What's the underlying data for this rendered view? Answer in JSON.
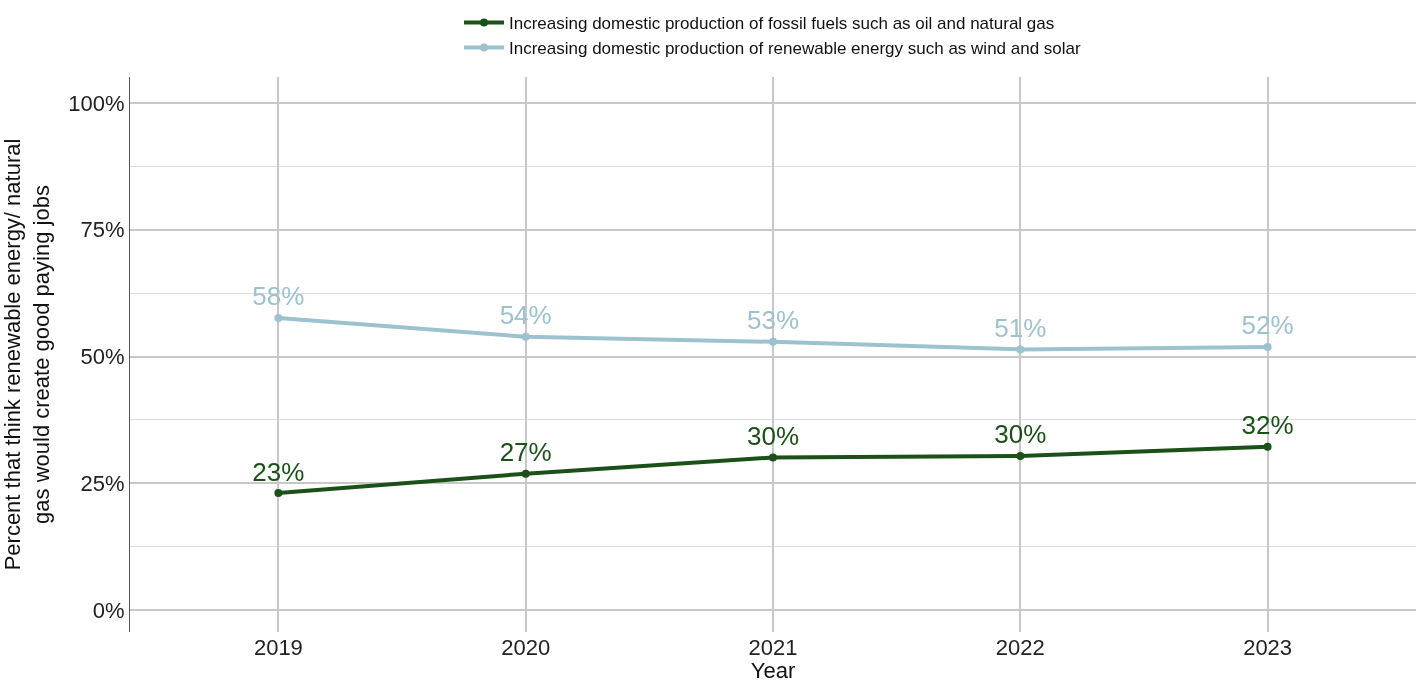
{
  "chart_data": {
    "type": "line",
    "xlabel": "Year",
    "ylabel": "Percent that think renewable energy/ natural\ngas would create good paying jobs",
    "x": [
      2019,
      2020,
      2021,
      2022,
      2023
    ],
    "xlim": [
      2018.4,
      2023.6
    ],
    "xticks": [
      2019,
      2020,
      2021,
      2022,
      2023
    ],
    "ylim": [
      -4.3,
      105.1
    ],
    "yticks": [
      {
        "value": 0,
        "label": "0%"
      },
      {
        "value": 25,
        "label": "25%"
      },
      {
        "value": 50,
        "label": "50%"
      },
      {
        "value": 75,
        "label": "75%"
      },
      {
        "value": 100,
        "label": "100%"
      }
    ],
    "series": [
      {
        "name": "Increasing domestic production of fossil fuels such as oil and natural gas",
        "color": "#1b5119",
        "values": [
          23.1,
          26.9,
          30.1,
          30.4,
          32.2
        ],
        "value_labels": [
          "23%",
          "27%",
          "30%",
          "30%",
          "32%"
        ]
      },
      {
        "name": "Increasing domestic production of renewable energy such as wind and solar",
        "color": "#9dc2cf",
        "values": [
          57.6,
          53.9,
          52.9,
          51.4,
          51.9
        ],
        "value_labels": [
          "58%",
          "54%",
          "53%",
          "51%",
          "52%"
        ]
      }
    ],
    "grid": true,
    "legend": "top",
    "marker": "circle",
    "line_style": "solid"
  }
}
